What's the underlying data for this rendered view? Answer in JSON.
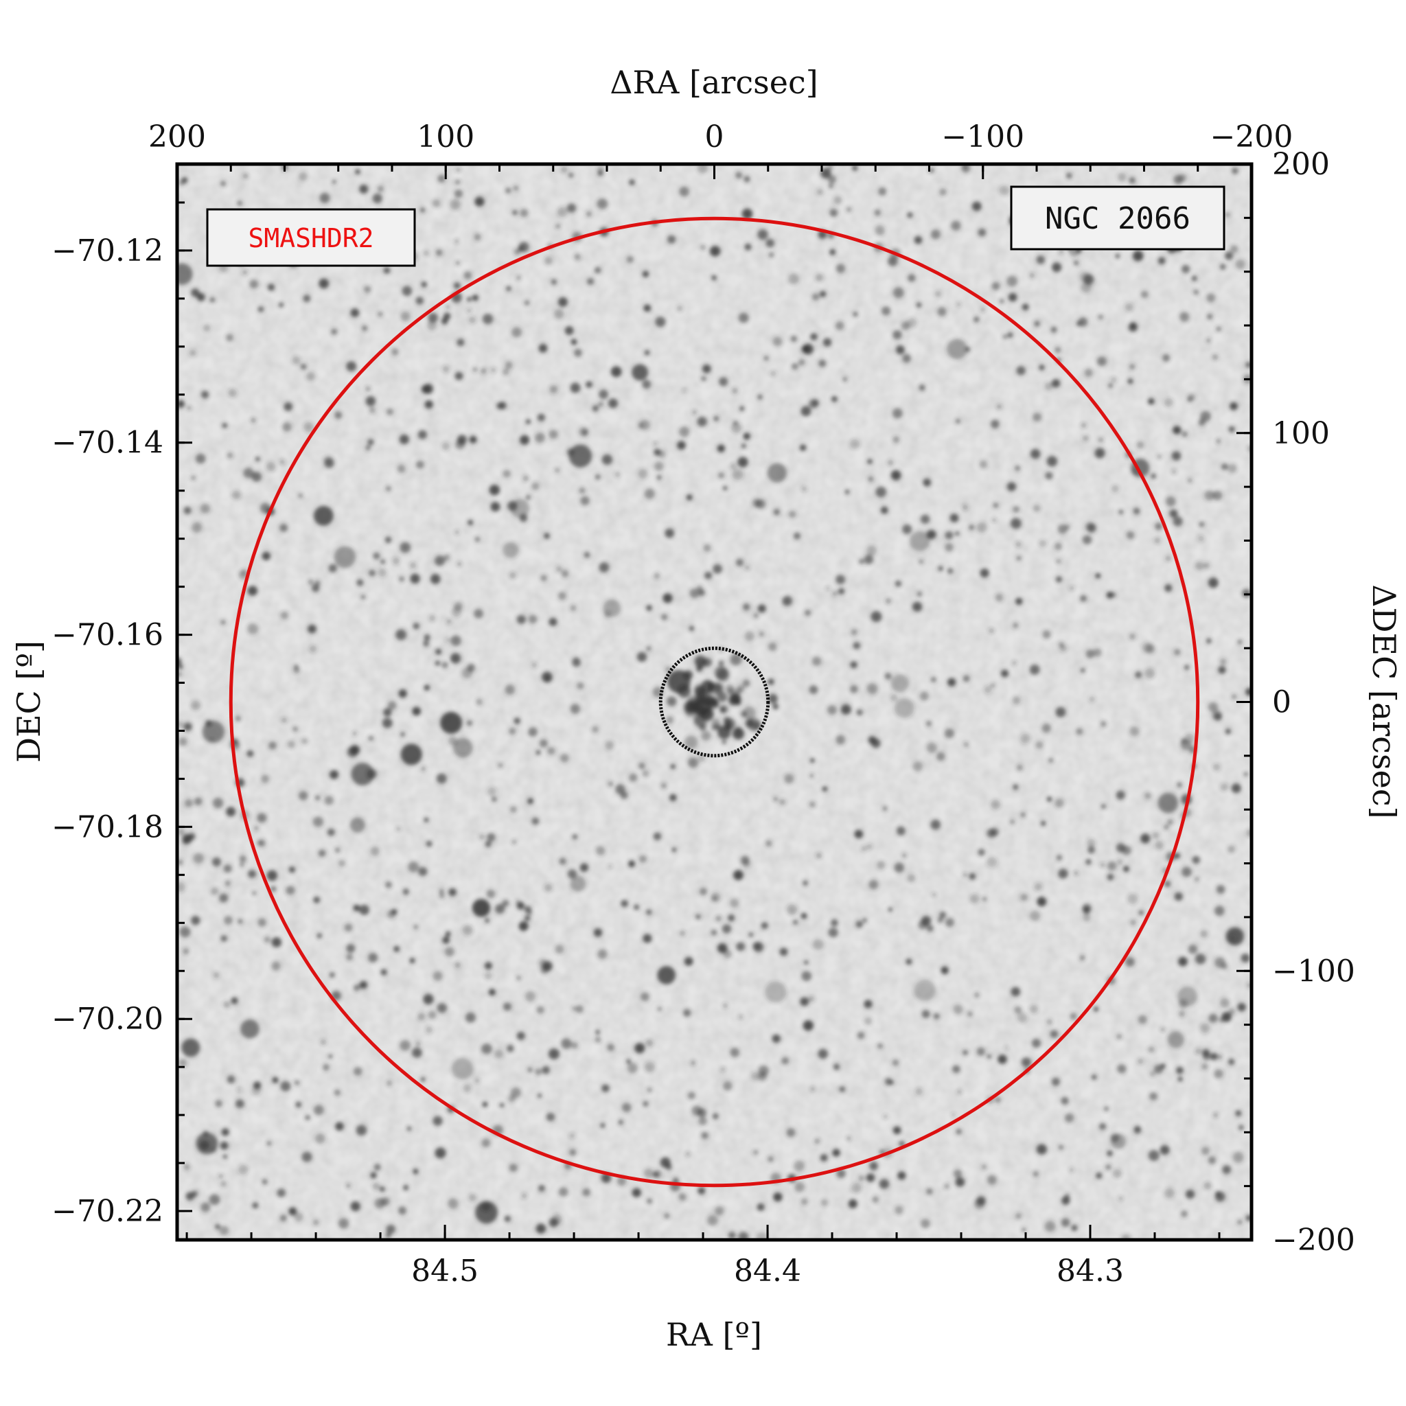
{
  "chart_data": {
    "type": "image",
    "object_label": "NGC 2066",
    "survey_label": "SMASHDR2",
    "colors": {
      "survey_label": "#ee1111",
      "outer_circle": "#dd1111",
      "inner_circle": "#111111",
      "field_background": "#d8d8d8",
      "stars": "#333333"
    },
    "axes": {
      "bottom": {
        "label": "RA [º]",
        "range": [
          84.583,
          84.25
        ],
        "ticks": [
          84.5,
          84.4,
          84.3
        ],
        "tick_labels": [
          "84.5",
          "84.4",
          "84.3"
        ]
      },
      "left": {
        "label": "DEC [º]",
        "range": [
          -70.223,
          -70.111
        ],
        "ticks": [
          -70.12,
          -70.14,
          -70.16,
          -70.18,
          -70.2,
          -70.22
        ],
        "tick_labels": [
          "−70.12",
          "−70.14",
          "−70.16",
          "−70.18",
          "−70.20",
          "−70.22"
        ]
      },
      "top": {
        "label": "ΔRA [arcsec]",
        "range": [
          200,
          -200
        ],
        "ticks": [
          200,
          100,
          0,
          -100,
          -200
        ],
        "tick_labels": [
          "200",
          "100",
          "0",
          "−100",
          "−200"
        ]
      },
      "right": {
        "label": "ΔDEC [arcsec]",
        "range": [
          -200,
          200
        ],
        "ticks": [
          200,
          100,
          0,
          -100,
          -200
        ],
        "tick_labels": [
          "200",
          "100",
          "0",
          "−100",
          "−200"
        ]
      }
    },
    "circles": [
      {
        "name": "outer",
        "center_arcsec": [
          0,
          0
        ],
        "radius_arcsec": 180
      },
      {
        "name": "inner",
        "center_arcsec": [
          0,
          0
        ],
        "radius_arcsec": 20
      }
    ]
  }
}
